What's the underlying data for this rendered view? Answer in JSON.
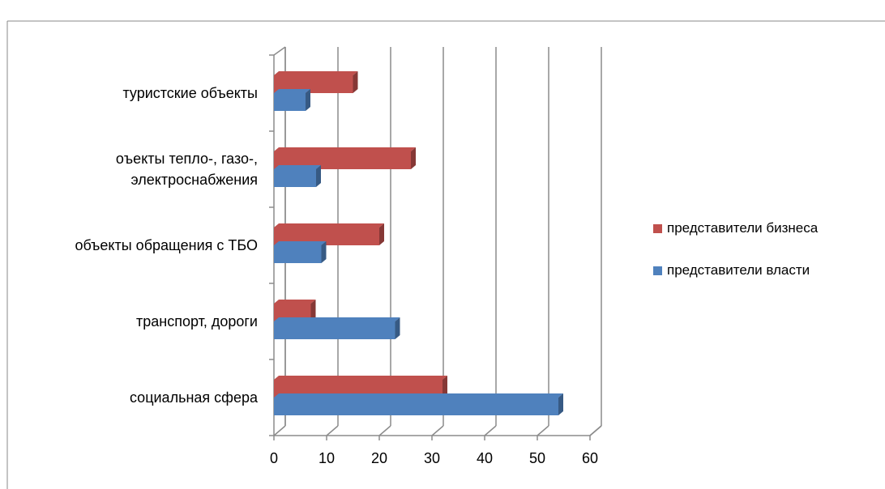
{
  "chart_data": {
    "type": "bar",
    "orientation": "horizontal",
    "style": "3d",
    "categories": [
      "туристские объекты",
      "оъекты тепло-, газо-, электроснабжения",
      "объекты обращения с ТБО",
      "транспорт, дороги",
      "социальная сфера"
    ],
    "series": [
      {
        "name": "представители бизнеса",
        "color": "#C0504D",
        "values": [
          15,
          26,
          20,
          7,
          32
        ]
      },
      {
        "name": "представители власти",
        "color": "#4F81BD",
        "values": [
          6,
          8,
          9,
          23,
          54
        ]
      }
    ],
    "xlim": [
      0,
      60
    ],
    "ticks": [
      "0",
      "10",
      "20",
      "30",
      "40",
      "50",
      "60"
    ],
    "grid": true,
    "legend_position": "right",
    "title": "",
    "xlabel": "",
    "ylabel": ""
  }
}
